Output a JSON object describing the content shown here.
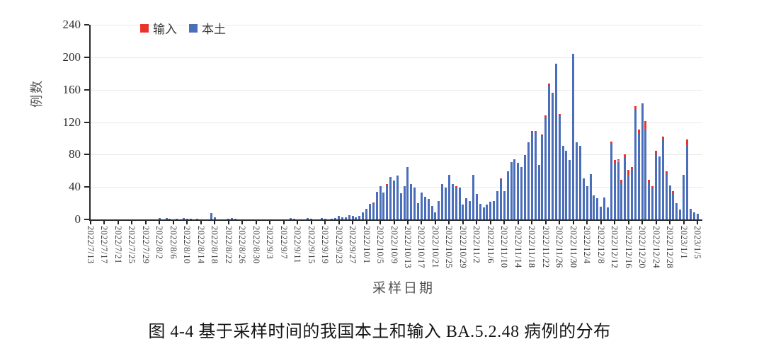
{
  "figure": {
    "caption": "图 4-4 基于采样时间的我国本土和输入 BA.5.2.48 病例的分布"
  },
  "chart_data": {
    "type": "bar",
    "stacked": true,
    "title": "",
    "xlabel": "采样日期",
    "ylabel": "例数",
    "ylim": [
      0,
      240
    ],
    "y_ticks": [
      0,
      40,
      80,
      120,
      160,
      200,
      240
    ],
    "grid": "horizontal",
    "legend_position": "top-left-inside",
    "legend": [
      {
        "label": "输入",
        "color": "#e8352c"
      },
      {
        "label": "本土",
        "color": "#4a6eba"
      }
    ],
    "x_start": "2022/7/13",
    "x_end": "2023/1/5",
    "x_tick_interval_days": 4,
    "x_tick_labels": [
      "2022/7/13",
      "2022/7/17",
      "2022/7/21",
      "2022/7/25",
      "2022/7/29",
      "2022/8/2",
      "2022/8/6",
      "2022/8/10",
      "2022/8/14",
      "2022/8/18",
      "2022/8/22",
      "2022/8/26",
      "2022/8/30",
      "2022/9/3",
      "2022/9/7",
      "2022/9/11",
      "2022/9/15",
      "2022/9/19",
      "2022/9/23",
      "2022/9/27",
      "2022/10/1",
      "2022/10/5",
      "2022/10/9",
      "2022/10/13",
      "2022/10/17",
      "2022/10/21",
      "2022/10/25",
      "2022/10/29",
      "2022/11/2",
      "2022/11/6",
      "2022/11/10",
      "2022/11/14",
      "2022/11/18",
      "2022/11/22",
      "2022/11/26",
      "2022/11/30",
      "2022/12/4",
      "2022/12/8",
      "2022/12/12",
      "2022/12/16",
      "2022/12/20",
      "2022/12/24",
      "2022/12/28",
      "2023/1/1",
      "2023/1/5"
    ],
    "series": [
      {
        "name": "本土",
        "color": "#4a6eba",
        "values": [
          0,
          0,
          0,
          0,
          0,
          0,
          0,
          0,
          0,
          0,
          0,
          0,
          0,
          0,
          0,
          0,
          0,
          0,
          0,
          0,
          2,
          0,
          2,
          1,
          0,
          1,
          0,
          2,
          1,
          1,
          0,
          0,
          0,
          0,
          0,
          8,
          3,
          0,
          0,
          0,
          1,
          2,
          1,
          0,
          0,
          0,
          0,
          0,
          0,
          0,
          0,
          0,
          0,
          0,
          0,
          0,
          0,
          0,
          2,
          1,
          0,
          0,
          0,
          2,
          1,
          0,
          0,
          2,
          1,
          0,
          1,
          2,
          4,
          3,
          3,
          5,
          4,
          3,
          4,
          9,
          13,
          19,
          19,
          34,
          41,
          33,
          42,
          52,
          48,
          54,
          32,
          41,
          65,
          44,
          39,
          20,
          33,
          28,
          25,
          17,
          9,
          23,
          44,
          39,
          55,
          44,
          39,
          39,
          18,
          26,
          23,
          55,
          31,
          19,
          15,
          18,
          22,
          23,
          35,
          49,
          35,
          59,
          71,
          74,
          70,
          65,
          79,
          95,
          107,
          107,
          67,
          103,
          125,
          165,
          156,
          192,
          128,
          91,
          85,
          73,
          204,
          95,
          91,
          51,
          41,
          56,
          30,
          26,
          16,
          27,
          15,
          93,
          70,
          72,
          45,
          77,
          54,
          61,
          136,
          106,
          143,
          111,
          45,
          38,
          80,
          78,
          98,
          56,
          42,
          32,
          20,
          12,
          55,
          92,
          13,
          9,
          7
        ]
      },
      {
        "name": "输入",
        "color": "#e8352c",
        "values": [
          0,
          0,
          0,
          0,
          0,
          0,
          0,
          0,
          0,
          0,
          0,
          0,
          0,
          0,
          0,
          0,
          0,
          0,
          0,
          0,
          0,
          0,
          0,
          0,
          0,
          0,
          0,
          0,
          0,
          0,
          0,
          1,
          0,
          0,
          0,
          0,
          0,
          0,
          0,
          0,
          0,
          0,
          0,
          0,
          0,
          0,
          0,
          0,
          0,
          0,
          0,
          0,
          0,
          0,
          0,
          0,
          0,
          0,
          0,
          0,
          0,
          0,
          0,
          0,
          0,
          0,
          0,
          0,
          0,
          0,
          0,
          0,
          0,
          0,
          0,
          0,
          0,
          0,
          0,
          0,
          0,
          0,
          2,
          0,
          0,
          0,
          2,
          0,
          0,
          0,
          0,
          0,
          0,
          0,
          0,
          0,
          0,
          0,
          0,
          0,
          0,
          0,
          0,
          0,
          0,
          0,
          2,
          0,
          0,
          0,
          0,
          0,
          0,
          0,
          0,
          0,
          0,
          0,
          0,
          2,
          0,
          0,
          0,
          0,
          0,
          0,
          0,
          0,
          2,
          2,
          0,
          2,
          3,
          3,
          0,
          0,
          2,
          0,
          0,
          0,
          0,
          0,
          0,
          0,
          0,
          0,
          0,
          0,
          0,
          0,
          0,
          3,
          3,
          2,
          4,
          3,
          7,
          4,
          4,
          5,
          0,
          10,
          4,
          3,
          5,
          0,
          4,
          3,
          0,
          3,
          0,
          0,
          0,
          7,
          0,
          0,
          0
        ]
      }
    ]
  },
  "colors": {
    "local_bar": "#4a6eba",
    "imported_bar": "#e8352c",
    "gridline": "#e9e9e9",
    "axis": "#2a2a2a",
    "tick_text": "#3d3d3d"
  }
}
